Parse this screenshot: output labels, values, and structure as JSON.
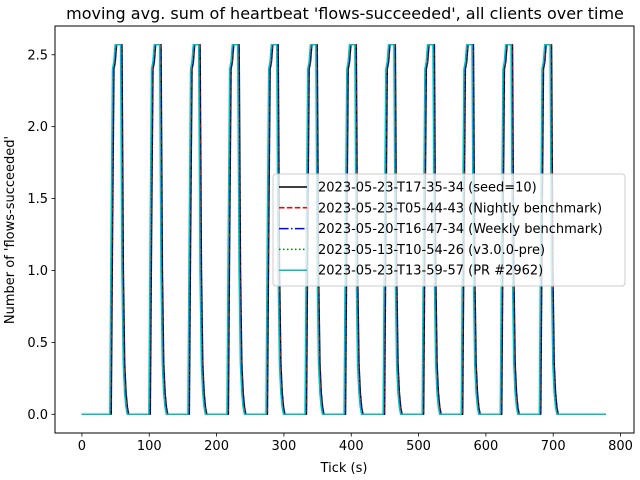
{
  "chart_data": {
    "type": "line",
    "title": "moving avg. sum of heartbeat 'flows-succeeded', all clients over time",
    "xlabel": "Tick (s)",
    "ylabel": "Number of 'flows-succeeded'",
    "xlim": [
      -40,
      820
    ],
    "ylim": [
      -0.13,
      2.7
    ],
    "xticks": [
      0,
      100,
      200,
      300,
      400,
      500,
      600,
      700,
      800
    ],
    "xtick_labels": [
      "0",
      "100",
      "200",
      "300",
      "400",
      "500",
      "600",
      "700",
      "800"
    ],
    "yticks": [
      0.0,
      0.5,
      1.0,
      1.5,
      2.0,
      2.5
    ],
    "ytick_labels": [
      "0.0",
      "0.5",
      "1.0",
      "1.5",
      "2.0",
      "2.5"
    ],
    "grid": false,
    "legend_position": "center-right",
    "cycle": {
      "x": [
        0,
        42,
        44,
        46,
        48,
        50,
        54,
        58,
        60,
        62,
        64,
        66,
        68,
        70
      ],
      "y": [
        0.0,
        0.0,
        1.3,
        2.4,
        2.45,
        2.57,
        2.57,
        2.57,
        1.0,
        0.35,
        0.15,
        0.05,
        0.0,
        0.0
      ],
      "period": 58,
      "count": 12,
      "x_end": 778
    },
    "series": [
      {
        "name": "2023-05-23-T17-35-34 (seed=10)",
        "color": "#000000",
        "dash": "solid",
        "offset": 1.5
      },
      {
        "name": "2023-05-23-T05-44-43 (Nightly benchmark)",
        "color": "#ff0000",
        "dash": "dashed",
        "offset": 0.8
      },
      {
        "name": "2023-05-20-T16-47-34 (Weekly benchmark)",
        "color": "#0000ff",
        "dash": "dashdot",
        "offset": 0.4
      },
      {
        "name": "2023-05-13-T10-54-26 (v3.0.0-pre)",
        "color": "#008000",
        "dash": "dotted",
        "offset": 0.0
      },
      {
        "name": "2023-05-23-T13-59-57 (PR #2962)",
        "color": "#00bfbf",
        "dash": "solid",
        "offset": -0.6
      }
    ]
  }
}
